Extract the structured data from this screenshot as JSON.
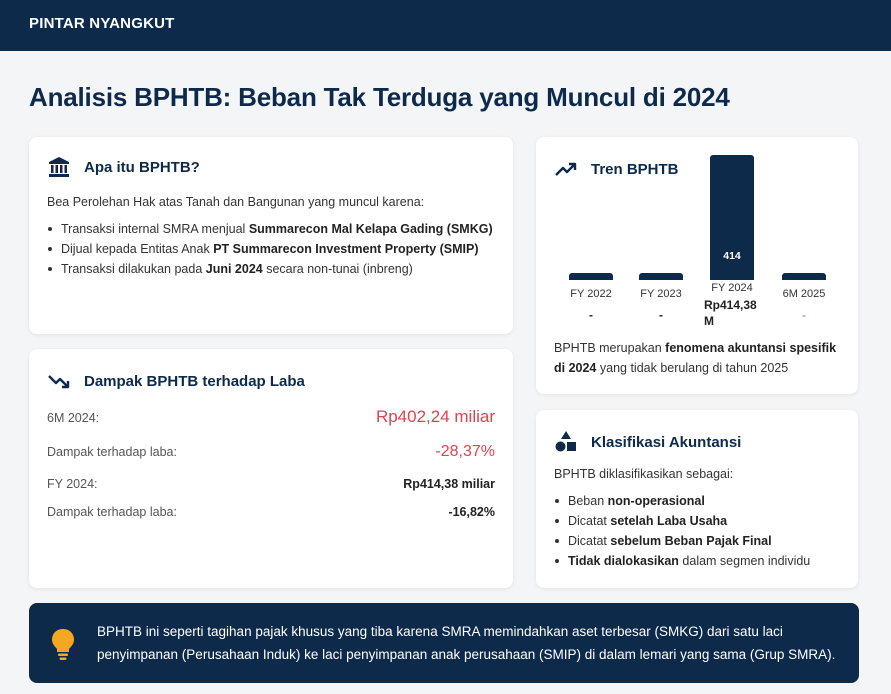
{
  "header": {
    "brand": "PINTAR NYANGKUT"
  },
  "page": {
    "title": "Analisis BPHTB: Beban Tak Terduga yang Muncul di 2024"
  },
  "what_is": {
    "title": "Apa itu BPHTB?",
    "icon": "bank-icon",
    "intro": "Bea Perolehan Hak atas Tanah dan Bangunan yang muncul karena:",
    "items": [
      {
        "pre": "Transaksi internal SMRA menjual ",
        "bold": "Summarecon Mal Kelapa Gading (SMKG)",
        "post": ""
      },
      {
        "pre": "Dijual kepada Entitas Anak ",
        "bold": "PT Summarecon Investment Property (SMIP)",
        "post": ""
      },
      {
        "pre": "Transaksi dilakukan pada ",
        "bold": "Juni 2024",
        "post": " secara non-tunai (inbreng)"
      }
    ]
  },
  "impact": {
    "title": "Dampak BPHTB terhadap Laba",
    "icon": "trend-down-icon",
    "rows": [
      {
        "label": "6M 2024:",
        "value": "Rp402,24 miliar"
      },
      {
        "label": "Dampak terhadap laba:",
        "value": "-28,37%"
      },
      {
        "label": "FY 2024:",
        "value": "Rp414,38 miliar"
      },
      {
        "label": "Dampak terhadap laba:",
        "value": "-16,82%"
      }
    ]
  },
  "trend": {
    "title": "Tren BPHTB",
    "icon": "trend-up-icon",
    "note_pre": "BPHTB merupakan ",
    "note_bold": "fenomena akuntansi spesifik di 2024",
    "note_post": " yang tidak berulang di tahun 2025"
  },
  "chart_data": {
    "type": "bar",
    "categories": [
      "FY 2022",
      "FY 2023",
      "FY 2024",
      "6M 2025"
    ],
    "values": [
      0,
      0,
      414.38,
      0
    ],
    "bar_labels": [
      "",
      "",
      "414",
      ""
    ],
    "value_labels": [
      "-",
      "-",
      "Rp414,38 M",
      "-"
    ],
    "unit": "miliar Rupiah",
    "colors": {
      "bar": "#0d2a4b",
      "dash_2025": "#3aa655"
    }
  },
  "classification": {
    "title": "Klasifikasi Akuntansi",
    "icon": "shapes-icon",
    "intro": "BPHTB diklasifikasikan sebagai:",
    "items": [
      {
        "pre": "Beban ",
        "bold": "non-operasional",
        "post": ""
      },
      {
        "pre": "Dicatat ",
        "bold": "setelah Laba Usaha",
        "post": ""
      },
      {
        "pre": "Dicatat ",
        "bold": "sebelum Beban Pajak Final",
        "post": ""
      },
      {
        "pre": "",
        "bold": "Tidak dialokasikan",
        "post": " dalam segmen individu"
      }
    ]
  },
  "callout": {
    "icon": "lightbulb-icon",
    "text": "BPHTB ini seperti tagihan pajak khusus yang tiba karena SMRA memindahkan aset terbesar (SMKG) dari satu laci penyimpanan (Perusahaan Induk) ke laci penyimpanan anak perusahaan (SMIP) di dalam lemari yang sama (Grup SMRA)."
  },
  "colors": {
    "navy": "#0d2a4b",
    "red": "#e0434f",
    "amber": "#f5a623"
  }
}
